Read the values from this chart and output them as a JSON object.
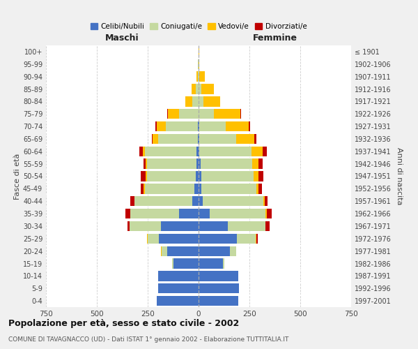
{
  "age_groups": [
    "0-4",
    "5-9",
    "10-14",
    "15-19",
    "20-24",
    "25-29",
    "30-34",
    "35-39",
    "40-44",
    "45-49",
    "50-54",
    "55-59",
    "60-64",
    "65-69",
    "70-74",
    "75-79",
    "80-84",
    "85-89",
    "90-94",
    "95-99",
    "100+"
  ],
  "birth_years": [
    "1997-2001",
    "1992-1996",
    "1987-1991",
    "1982-1986",
    "1977-1981",
    "1972-1976",
    "1967-1971",
    "1962-1966",
    "1957-1961",
    "1952-1956",
    "1947-1951",
    "1942-1946",
    "1937-1941",
    "1932-1936",
    "1927-1931",
    "1922-1926",
    "1917-1921",
    "1912-1916",
    "1907-1911",
    "1902-1906",
    "≤ 1901"
  ],
  "male_celibi": [
    205,
    200,
    200,
    125,
    155,
    195,
    185,
    95,
    30,
    20,
    15,
    10,
    10,
    5,
    5,
    0,
    0,
    0,
    0,
    0,
    0
  ],
  "male_coniugati": [
    0,
    0,
    0,
    5,
    25,
    55,
    155,
    240,
    285,
    245,
    240,
    245,
    255,
    195,
    155,
    95,
    30,
    15,
    5,
    2,
    0
  ],
  "male_vedovi": [
    0,
    0,
    0,
    0,
    5,
    5,
    0,
    0,
    0,
    5,
    5,
    5,
    10,
    25,
    45,
    55,
    35,
    20,
    5,
    2,
    0
  ],
  "male_divorziati": [
    0,
    0,
    0,
    0,
    0,
    0,
    10,
    25,
    20,
    15,
    25,
    10,
    15,
    5,
    8,
    5,
    0,
    0,
    0,
    0,
    0
  ],
  "female_celibi": [
    195,
    200,
    195,
    120,
    155,
    190,
    145,
    55,
    20,
    15,
    15,
    10,
    5,
    5,
    5,
    0,
    0,
    0,
    0,
    0,
    0
  ],
  "female_coniugati": [
    0,
    0,
    0,
    5,
    30,
    90,
    185,
    275,
    300,
    270,
    255,
    255,
    255,
    180,
    130,
    75,
    25,
    15,
    5,
    0,
    0
  ],
  "female_vedovi": [
    0,
    0,
    0,
    0,
    0,
    5,
    0,
    5,
    5,
    10,
    25,
    30,
    55,
    90,
    110,
    130,
    80,
    60,
    25,
    5,
    2
  ],
  "female_divorziati": [
    0,
    0,
    0,
    0,
    0,
    5,
    20,
    25,
    15,
    15,
    25,
    20,
    20,
    10,
    10,
    5,
    0,
    0,
    0,
    0,
    0
  ],
  "colors": {
    "celibi": "#4472c4",
    "coniugati": "#c5d9a0",
    "vedovi": "#ffc000",
    "divorziati": "#c00000"
  },
  "title": "Popolazione per età, sesso e stato civile - 2002",
  "subtitle": "COMUNE DI TAVAGNACCO (UD) - Dati ISTAT 1° gennaio 2002 - Elaborazione TUTTITALIA.IT",
  "xlabel_left": "Maschi",
  "xlabel_right": "Femmine",
  "ylabel_left": "Fasce di età",
  "ylabel_right": "Anni di nascita",
  "xlim": 750,
  "legend_labels": [
    "Celibi/Nubili",
    "Coniugati/e",
    "Vedovi/e",
    "Divorziati/e"
  ],
  "bg_color": "#f0f0f0",
  "plot_bg_color": "#ffffff"
}
